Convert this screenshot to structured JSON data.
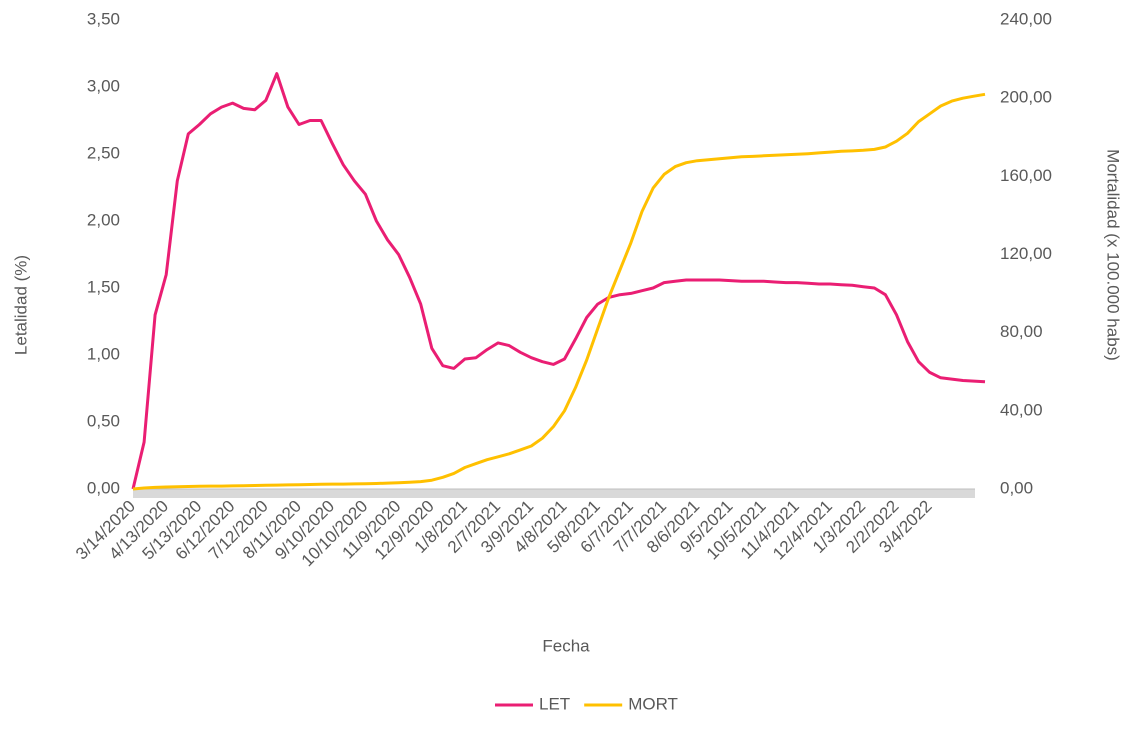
{
  "chart_data": {
    "type": "line",
    "xlabel": "Fecha",
    "ylabel": "Letalidad (%)",
    "y2label": "Mortalidad (x 100.000 habs)",
    "categories": [
      "3/14/2020",
      null,
      null,
      "4/13/2020",
      null,
      null,
      "5/13/2020",
      null,
      null,
      "6/12/2020",
      null,
      null,
      "7/12/2020",
      null,
      null,
      "8/11/2020",
      null,
      null,
      "9/10/2020",
      null,
      null,
      "10/10/2020",
      null,
      null,
      "11/9/2020",
      null,
      null,
      "12/9/2020",
      null,
      null,
      "1/8/2021",
      null,
      null,
      "2/7/2021",
      null,
      null,
      "3/9/2021",
      null,
      null,
      "4/8/2021",
      null,
      null,
      "5/8/2021",
      null,
      null,
      "6/7/2021",
      null,
      null,
      "7/7/2021",
      null,
      null,
      "8/6/2021",
      null,
      null,
      "9/5/2021",
      null,
      null,
      "10/5/2021",
      null,
      null,
      "11/4/2021",
      null,
      null,
      "12/4/2021",
      null,
      null,
      "1/3/2022",
      null,
      null,
      "2/2/2022",
      null,
      null,
      "3/4/2022",
      null,
      null,
      null,
      null,
      null
    ],
    "series": [
      {
        "name": "LET",
        "color": "#ea1e73",
        "axis": "y",
        "values": [
          0,
          0.35,
          1.3,
          1.6,
          2.3,
          2.65,
          2.72,
          2.8,
          2.85,
          2.88,
          2.84,
          2.83,
          2.9,
          3.1,
          2.85,
          2.72,
          2.75,
          2.75,
          2.58,
          2.42,
          2.3,
          2.2,
          2.0,
          1.86,
          1.75,
          1.58,
          1.38,
          1.05,
          0.92,
          0.9,
          0.97,
          0.98,
          1.04,
          1.09,
          1.07,
          1.02,
          0.98,
          0.95,
          0.93,
          0.97,
          1.12,
          1.28,
          1.38,
          1.43,
          1.45,
          1.46,
          1.48,
          1.5,
          1.54,
          1.55,
          1.56,
          1.56,
          1.56,
          1.56,
          1.555,
          1.55,
          1.55,
          1.55,
          1.545,
          1.54,
          1.54,
          1.535,
          1.53,
          1.53,
          1.525,
          1.52,
          1.51,
          1.5,
          1.45,
          1.3,
          1.1,
          0.95,
          0.87,
          0.83,
          0.82,
          0.81,
          0.805,
          0.8
        ]
      },
      {
        "name": "MORT",
        "color": "#ffc000",
        "axis": "y2",
        "values": [
          0,
          0.5,
          0.8,
          1,
          1.2,
          1.3,
          1.4,
          1.5,
          1.5,
          1.6,
          1.7,
          1.8,
          1.9,
          2.0,
          2.1,
          2.2,
          2.3,
          2.4,
          2.5,
          2.5,
          2.6,
          2.7,
          2.8,
          3.0,
          3.2,
          3.5,
          3.8,
          4.5,
          6,
          8,
          11,
          13,
          15,
          16.5,
          18,
          20,
          22,
          26,
          32,
          40,
          52,
          66,
          82,
          98,
          112,
          126,
          142,
          154,
          161,
          165,
          167,
          168,
          168.5,
          169,
          169.5,
          170,
          170.2,
          170.5,
          170.8,
          171,
          171.3,
          171.6,
          172,
          172.4,
          172.8,
          173,
          173.3,
          173.8,
          175,
          178,
          182,
          188,
          192,
          196,
          198.5,
          200,
          201,
          202
        ]
      }
    ],
    "ylim": [
      0,
      3.5
    ],
    "yticks": [
      {
        "value": 0,
        "label": "0,00"
      },
      {
        "value": 0.5,
        "label": "0,50"
      },
      {
        "value": 1,
        "label": "1,00"
      },
      {
        "value": 1.5,
        "label": "1,50"
      },
      {
        "value": 2,
        "label": "2,00"
      },
      {
        "value": 2.5,
        "label": "2,50"
      },
      {
        "value": 3,
        "label": "3,00"
      },
      {
        "value": 3.5,
        "label": "3,50"
      }
    ],
    "y2lim": [
      0,
      240
    ],
    "y2ticks": [
      {
        "value": 0,
        "label": "0,00"
      },
      {
        "value": 40,
        "label": "40,00"
      },
      {
        "value": 80,
        "label": "80,00"
      },
      {
        "value": 120,
        "label": "120,00"
      },
      {
        "value": 160,
        "label": "160,00"
      },
      {
        "value": 200,
        "label": "200,00"
      },
      {
        "value": 240,
        "label": "240,00"
      }
    ],
    "legend": "bottom"
  }
}
